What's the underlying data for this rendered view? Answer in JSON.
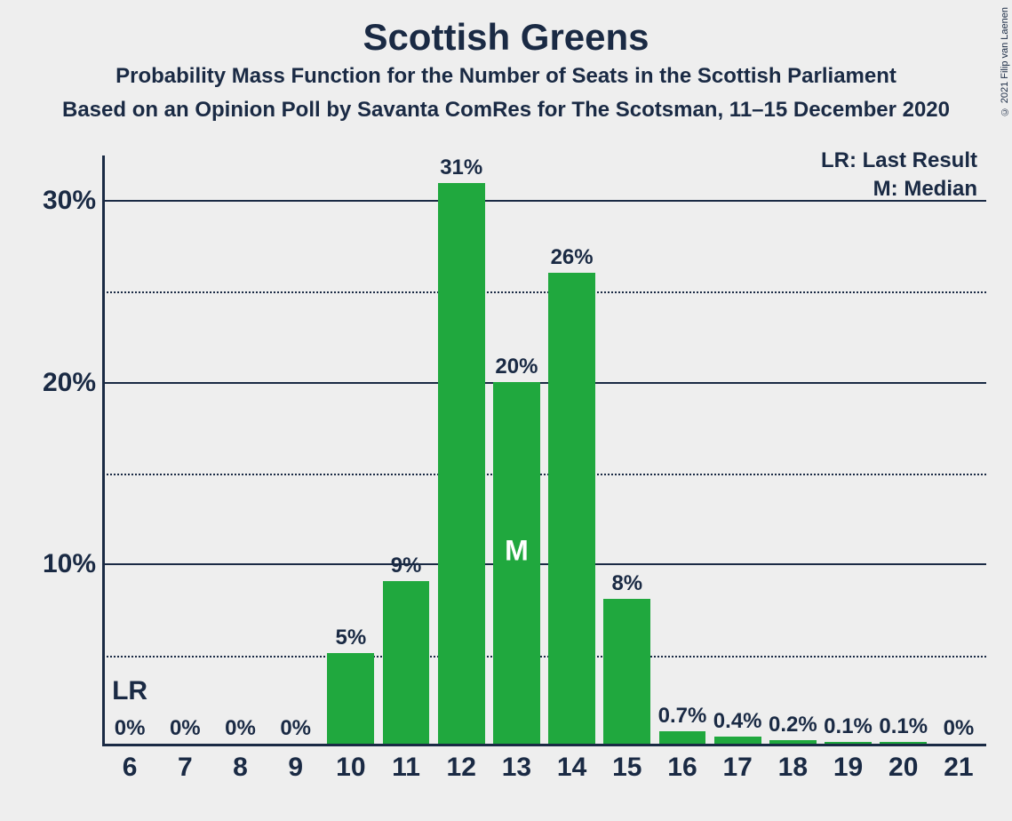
{
  "title": "Scottish Greens",
  "subtitle": "Probability Mass Function for the Number of Seats in the Scottish Parliament",
  "source": "Based on an Opinion Poll by Savanta ComRes for The Scotsman, 11–15 December 2020",
  "copyright": "© 2021 Filip van Laenen",
  "legend": {
    "lr": "LR: Last Result",
    "m": "M: Median"
  },
  "chart": {
    "type": "bar",
    "bar_color": "#20a83e",
    "text_color": "#1a2a44",
    "background_color": "#eeeeee",
    "axis_color": "#1a2a44",
    "ylim": [
      0,
      32.5
    ],
    "y_major_ticks": [
      10,
      20,
      30
    ],
    "y_minor_ticks": [
      5,
      15,
      25
    ],
    "y_tick_labels": [
      "10%",
      "20%",
      "30%"
    ],
    "categories": [
      "6",
      "7",
      "8",
      "9",
      "10",
      "11",
      "12",
      "13",
      "14",
      "15",
      "16",
      "17",
      "18",
      "19",
      "20",
      "21"
    ],
    "values": [
      0,
      0,
      0,
      0,
      5,
      9,
      31,
      20,
      26,
      8,
      0.7,
      0.4,
      0.2,
      0.1,
      0.1,
      0
    ],
    "bar_value_labels": [
      "0%",
      "0%",
      "0%",
      "0%",
      "5%",
      "9%",
      "31%",
      "20%",
      "26%",
      "8%",
      "0.7%",
      "0.4%",
      "0.2%",
      "0.1%",
      "0.1%",
      "0%"
    ],
    "bar_width_ratio": 0.85,
    "lr_index": 0,
    "lr_text": "LR",
    "median_index": 7,
    "median_text": "M",
    "title_fontsize": 42,
    "subtitle_fontsize": 24,
    "axis_label_fontsize": 30,
    "bar_label_fontsize": 24
  }
}
